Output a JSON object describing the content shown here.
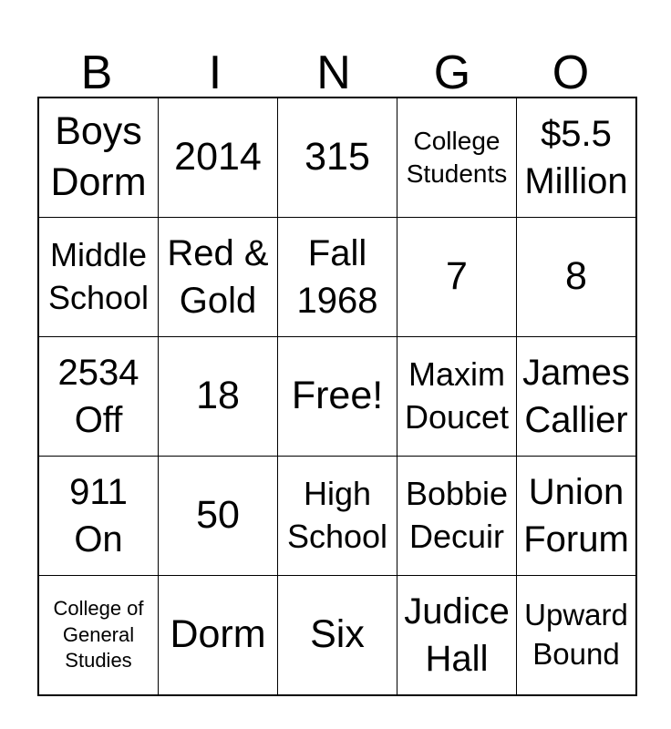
{
  "page": {
    "background_color": "#ffffff",
    "line_color": "#000000",
    "text_color": "#000000"
  },
  "title": {
    "letters": [
      "B",
      "I",
      "N",
      "G",
      "O"
    ]
  },
  "card": {
    "rows": 5,
    "cols": 5,
    "free_cell_index": 12,
    "cells": [
      {
        "text": "Boys\nDorm",
        "size": "xl"
      },
      {
        "text": "2014",
        "size": "xl"
      },
      {
        "text": "315",
        "size": "xl"
      },
      {
        "text": "College\nStudents",
        "size": "sm"
      },
      {
        "text": "$5.5\nMillion",
        "size": "lg"
      },
      {
        "text": "Middle\nSchool",
        "size": "md"
      },
      {
        "text": "Red &\nGold",
        "size": "lg"
      },
      {
        "text": "Fall\n1968",
        "size": "lg"
      },
      {
        "text": "7",
        "size": "xl"
      },
      {
        "text": "8",
        "size": "xl"
      },
      {
        "text": "2534\nOff",
        "size": "lg"
      },
      {
        "text": "18",
        "size": "xl"
      },
      {
        "text": "Free!",
        "size": "xl"
      },
      {
        "text": "Maxim\nDoucet",
        "size": "md"
      },
      {
        "text": "James\nCallier",
        "size": "lg"
      },
      {
        "text": "911\nOn",
        "size": "lg"
      },
      {
        "text": "50",
        "size": "xl"
      },
      {
        "text": "High\nSchool",
        "size": "md"
      },
      {
        "text": "Bobbie\nDecuir",
        "size": "md"
      },
      {
        "text": "Union\nForum",
        "size": "lg"
      },
      {
        "text": "College of\nGeneral\nStudies",
        "size": "xs"
      },
      {
        "text": "Dorm",
        "size": "xl"
      },
      {
        "text": "Six",
        "size": "xl"
      },
      {
        "text": "Judice\nHall",
        "size": "lg"
      },
      {
        "text": "Upward\nBound",
        "size": "smd"
      }
    ]
  }
}
